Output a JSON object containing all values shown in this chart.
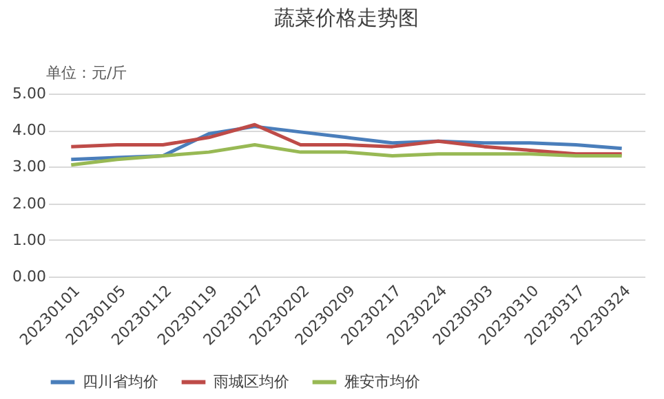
{
  "chart_data": {
    "type": "line",
    "title": "蔬菜价格走势图",
    "ylabel": "单位：元/斤",
    "categories": [
      "20230101",
      "20230105",
      "20230112",
      "20230119",
      "20230127",
      "20230202",
      "20230209",
      "20230217",
      "20230224",
      "20230303",
      "20230310",
      "20230317",
      "20230324"
    ],
    "series": [
      {
        "name": "四川省均价",
        "color": "#4a7ebb",
        "values": [
          3.2,
          3.25,
          3.3,
          3.9,
          4.1,
          3.95,
          3.8,
          3.65,
          3.7,
          3.65,
          3.65,
          3.6,
          3.5
        ]
      },
      {
        "name": "雨城区均价",
        "color": "#be4b48",
        "values": [
          3.55,
          3.6,
          3.6,
          3.8,
          4.15,
          3.6,
          3.6,
          3.55,
          3.7,
          3.55,
          3.45,
          3.35,
          3.35
        ]
      },
      {
        "name": "雅安市均价",
        "color": "#98b954",
        "values": [
          3.05,
          3.2,
          3.3,
          3.4,
          3.6,
          3.4,
          3.4,
          3.3,
          3.35,
          3.35,
          3.35,
          3.3,
          3.3
        ]
      }
    ],
    "ylim": [
      0,
      5
    ],
    "yticks": [
      {
        "value": 0,
        "label": "0.00"
      },
      {
        "value": 1,
        "label": "1.00"
      },
      {
        "value": 2,
        "label": "2.00"
      },
      {
        "value": 3,
        "label": "3.00"
      },
      {
        "value": 4,
        "label": "4.00"
      },
      {
        "value": 5,
        "label": "5.00"
      }
    ],
    "grid": "y",
    "legend": "bottom",
    "marker": "none",
    "line_style": "solid"
  }
}
